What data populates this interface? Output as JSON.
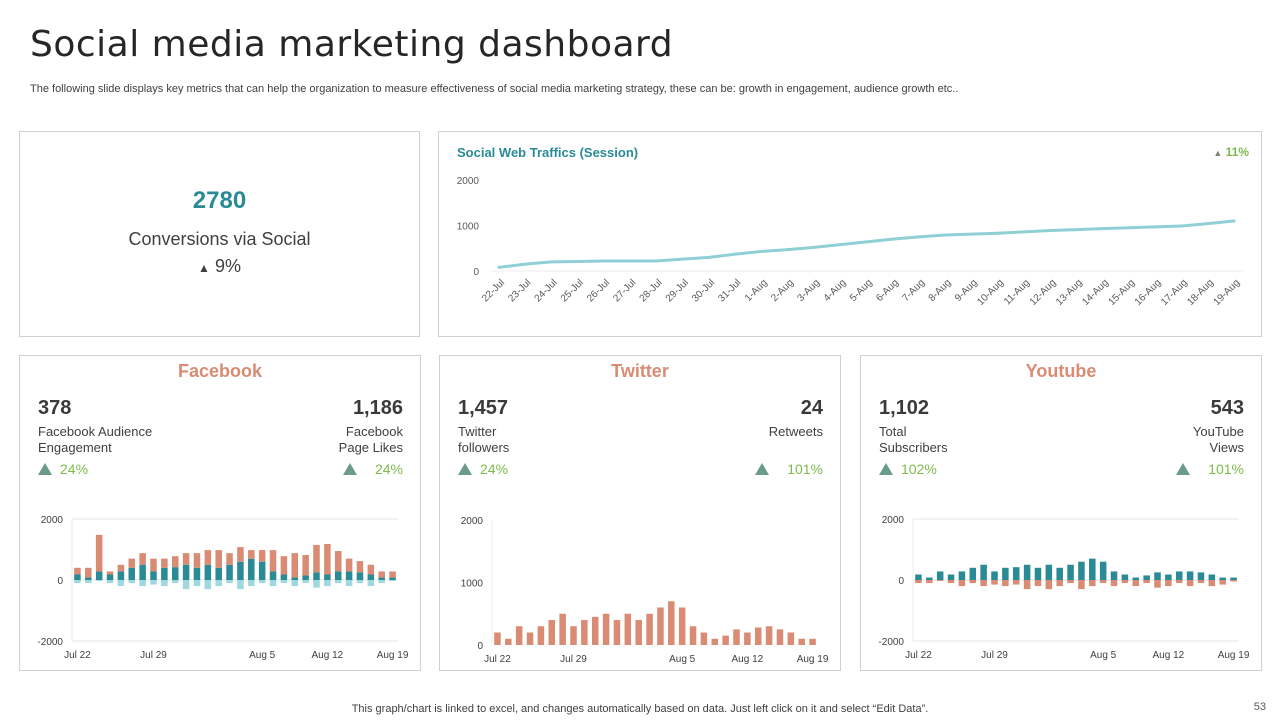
{
  "title": "Social media marketing dashboard",
  "subtitle": "The following slide displays key metrics that can help the organization to measure effectiveness of social media marketing strategy, these can be: growth in engagement, audience growth etc..",
  "conversions": {
    "value": "2780",
    "label": "Conversions via Social",
    "change": "9%",
    "arrow": "▲"
  },
  "colors": {
    "teal": "#2a8a96",
    "orange": "#d98c73",
    "light_teal": "#9fd9df",
    "green": "#7dbb4c",
    "line": "#8fd0d6"
  },
  "traffic": {
    "title": "Social Web Traffics (Session)",
    "change": "11%",
    "arrow": "▲"
  },
  "facebook": {
    "title": "Facebook",
    "left": {
      "value": "378",
      "label1": "Facebook Audience",
      "label2": "Engagement",
      "change": "24%"
    },
    "right": {
      "value": "1,186",
      "label1": "Facebook",
      "label2": "Page Likes",
      "change": "24%"
    }
  },
  "twitter": {
    "title": "Twitter",
    "left": {
      "value": "1,457",
      "label1": "Twitter",
      "label2": "followers",
      "change": "24%"
    },
    "right": {
      "value": "24",
      "label1": "Retweets",
      "label2": "",
      "change": "101%"
    }
  },
  "youtube": {
    "title": "Youtube",
    "left": {
      "value": "1,102",
      "label1": "Total",
      "label2": "Subscribers",
      "change": "102%"
    },
    "right": {
      "value": "543",
      "label1": "YouTube",
      "label2": "Views",
      "change": "101%"
    }
  },
  "footer": "This graph/chart is linked to excel,  and changes automatically based on data. Just left click on it and select “Edit Data”.",
  "page_number": "53",
  "chart_data": [
    {
      "id": "traffic",
      "type": "line",
      "ylim": [
        0,
        2000
      ],
      "yticks": [
        0,
        1000,
        2000
      ],
      "categories": [
        "22-Jul",
        "23-Jul",
        "24-Jul",
        "25-Jul",
        "26-Jul",
        "27-Jul",
        "28-Jul",
        "29-Jul",
        "30-Jul",
        "31-Jul",
        "1-Aug",
        "2-Aug",
        "3-Aug",
        "4-Aug",
        "5-Aug",
        "6-Aug",
        "7-Aug",
        "8-Aug",
        "9-Aug",
        "10-Aug",
        "11-Aug",
        "12-Aug",
        "13-Aug",
        "14-Aug",
        "15-Aug",
        "16-Aug",
        "17-Aug",
        "18-Aug",
        "19-Aug"
      ],
      "values": [
        80,
        150,
        200,
        210,
        220,
        220,
        220,
        260,
        300,
        370,
        430,
        470,
        520,
        580,
        640,
        700,
        750,
        790,
        810,
        830,
        860,
        890,
        910,
        930,
        950,
        970,
        990,
        1040,
        1100
      ]
    },
    {
      "id": "facebook",
      "type": "bar",
      "stacked": true,
      "ylim": [
        -2000,
        2000
      ],
      "yticks": [
        -2000,
        0,
        2000
      ],
      "xticks": [
        "Jul 22",
        "Jul 29",
        "Aug 5",
        "Aug 12",
        "Aug 19"
      ],
      "series": [
        {
          "color": "#2a8a96",
          "values": [
            180,
            80,
            280,
            180,
            280,
            400,
            500,
            280,
            400,
            420,
            500,
            400,
            500,
            400,
            500,
            600,
            700,
            600,
            280,
            180,
            80,
            150,
            250,
            180,
            280,
            280,
            250,
            180,
            80,
            80
          ]
        },
        {
          "color": "#d98c73",
          "values": [
            220,
            320,
            1200,
            100,
            220,
            300,
            380,
            420,
            300,
            360,
            380,
            480,
            480,
            580,
            380,
            480,
            280,
            380,
            700,
            600,
            800,
            670,
            900,
            1000,
            670,
            420,
            370,
            320,
            200,
            200
          ]
        },
        {
          "color": "#9fd9df",
          "values": [
            -100,
            -100,
            -30,
            -100,
            -200,
            -100,
            -200,
            -150,
            -200,
            -100,
            -300,
            -200,
            -300,
            -200,
            -100,
            -300,
            -200,
            -100,
            -200,
            -100,
            -200,
            -100,
            -250,
            -200,
            -100,
            -200,
            -100,
            -200,
            -100,
            -30
          ]
        }
      ]
    },
    {
      "id": "twitter",
      "type": "bar",
      "ylim": [
        0,
        2000
      ],
      "yticks": [
        0,
        1000,
        2000
      ],
      "xticks": [
        "Jul 22",
        "Jul 29",
        "Aug 5",
        "Aug 12",
        "Aug 19"
      ],
      "series": [
        {
          "color": "#d98c73",
          "values": [
            200,
            100,
            300,
            200,
            300,
            400,
            500,
            300,
            400,
            450,
            500,
            400,
            500,
            400,
            500,
            600,
            700,
            600,
            300,
            200,
            100,
            150,
            250,
            200,
            280,
            300,
            250,
            200,
            100,
            100
          ]
        }
      ]
    },
    {
      "id": "youtube",
      "type": "bar",
      "stacked": true,
      "ylim": [
        -2000,
        2000
      ],
      "yticks": [
        -2000,
        0,
        2000
      ],
      "xticks": [
        "Jul 22",
        "Jul 29",
        "Aug 5",
        "Aug 12",
        "Aug 19"
      ],
      "series": [
        {
          "color": "#2a8a96",
          "values": [
            180,
            80,
            280,
            180,
            280,
            400,
            500,
            280,
            400,
            420,
            500,
            400,
            500,
            400,
            500,
            600,
            700,
            600,
            280,
            180,
            80,
            150,
            250,
            180,
            280,
            280,
            250,
            180,
            80,
            80
          ]
        },
        {
          "color": "#d98c73",
          "values": [
            -100,
            -100,
            -30,
            -100,
            -200,
            -100,
            -200,
            -150,
            -200,
            -150,
            -300,
            -200,
            -300,
            -200,
            -100,
            -300,
            -200,
            -100,
            -200,
            -100,
            -200,
            -100,
            -250,
            -200,
            -100,
            -200,
            -100,
            -200,
            -150,
            -50
          ]
        }
      ]
    }
  ]
}
